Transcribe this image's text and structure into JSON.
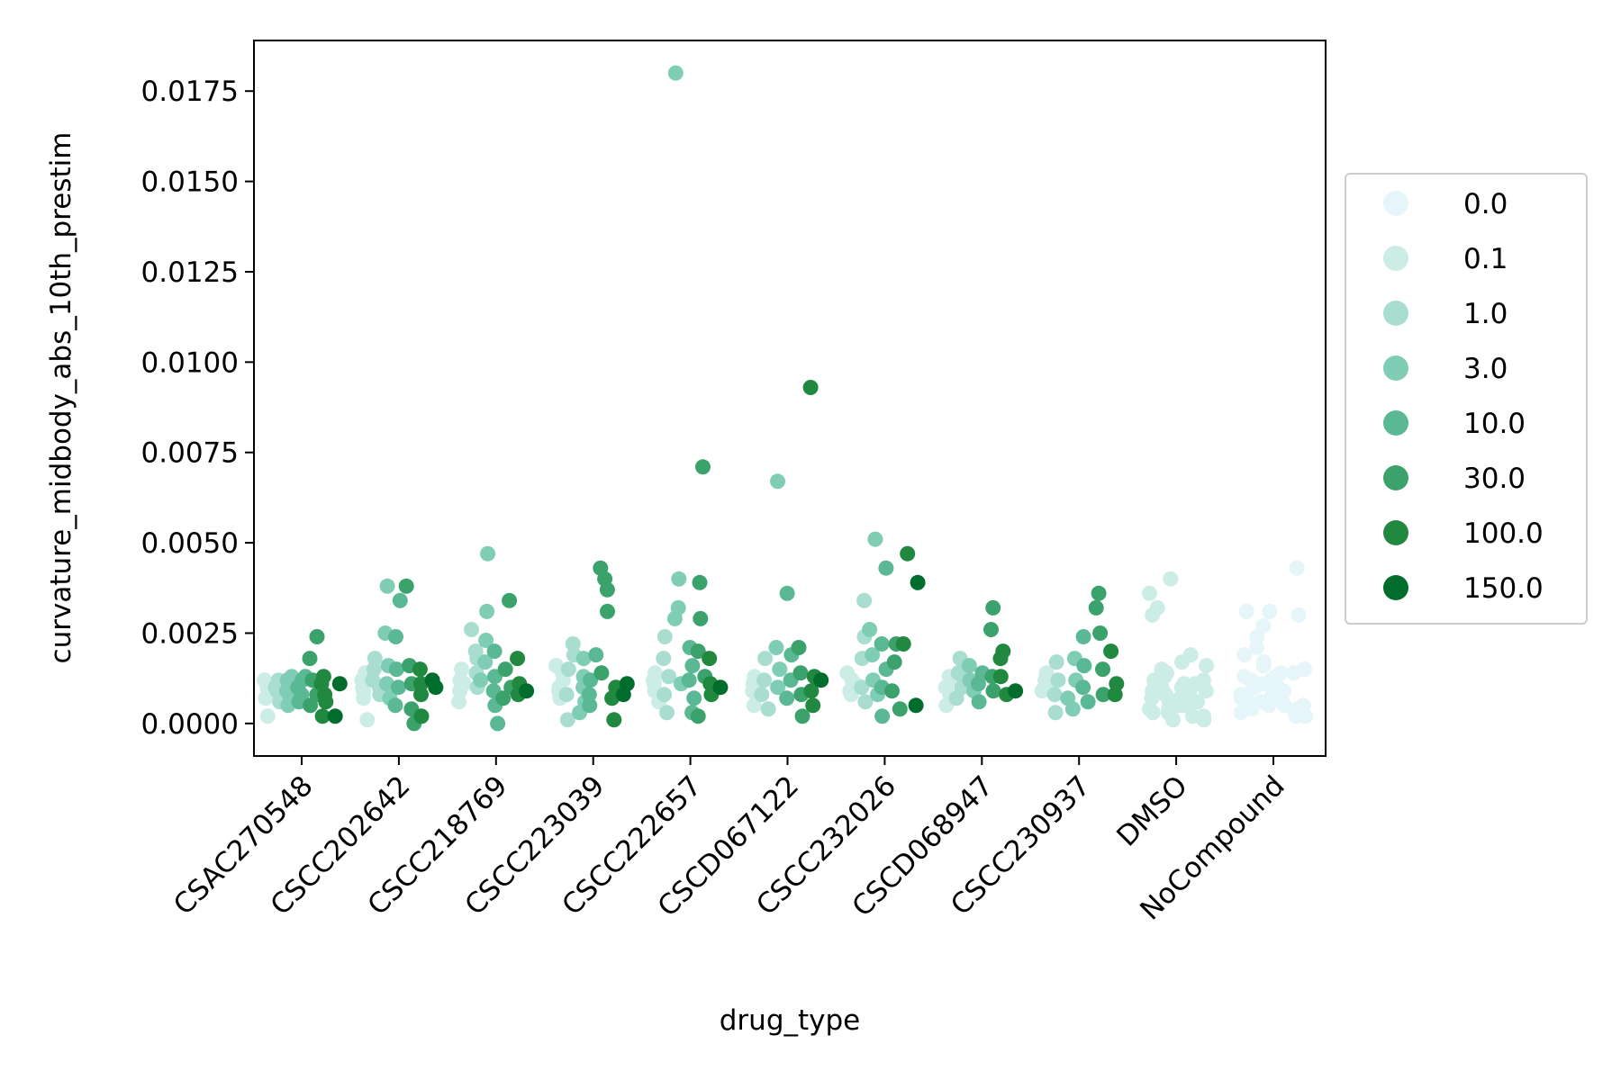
{
  "chart_data": {
    "type": "scatter",
    "subtype": "swarm",
    "xlabel": "drug_type",
    "ylabel": "curvature_midbody_abs_10th_prestim",
    "ylim": [
      -0.0009,
      0.0189
    ],
    "yticks": [
      "0.0000",
      "0.0025",
      "0.0050",
      "0.0075",
      "0.0100",
      "0.0125",
      "0.0150",
      "0.0175"
    ],
    "categories": [
      "CSAC270548",
      "CSCC202642",
      "CSCC218769",
      "CSCC223039",
      "CSCC222657",
      "CSCD067122",
      "CSCC232026",
      "CSCD068947",
      "CSCC230937",
      "DMSO",
      "NoCompound"
    ],
    "legend": {
      "placement": "center-right",
      "entries": [
        {
          "label": "0.0",
          "color": "#e5f5f9"
        },
        {
          "label": "0.1",
          "color": "#ccece6"
        },
        {
          "label": "1.0",
          "color": "#a8ddd0"
        },
        {
          "label": "3.0",
          "color": "#7fcdb5"
        },
        {
          "label": "10.0",
          "color": "#5ab994"
        },
        {
          "label": "30.0",
          "color": "#3aa26a"
        },
        {
          "label": "100.0",
          "color": "#21883f"
        },
        {
          "label": "150.0",
          "color": "#006d2c"
        }
      ]
    },
    "series": [
      {
        "category": "CSAC270548",
        "doses": [
          {
            "dose": "0.1",
            "values": [
              0.0011,
              0.0009,
              0.0012,
              0.0007,
              0.001,
              0.0002
            ]
          },
          {
            "dose": "1.0",
            "values": [
              0.001,
              0.0008,
              0.0006,
              0.0012,
              0.0009,
              0.0011
            ]
          },
          {
            "dose": "3.0",
            "values": [
              0.0013,
              0.0009,
              0.0007,
              0.0005,
              0.001,
              0.0012
            ]
          },
          {
            "dose": "10.0",
            "values": [
              0.0012,
              0.0008,
              0.0006,
              0.001,
              0.0013
            ]
          },
          {
            "dose": "30.0",
            "values": [
              0.0024,
              0.0018,
              0.0012,
              0.0008,
              0.0005
            ]
          },
          {
            "dose": "100.0",
            "values": [
              0.0013,
              0.0008,
              0.0006,
              0.0002,
              0.0011
            ]
          },
          {
            "dose": "150.0",
            "values": [
              0.0011,
              0.0002
            ]
          }
        ]
      },
      {
        "category": "CSCC202642",
        "doses": [
          {
            "dose": "0.1",
            "values": [
              0.001,
              0.0014,
              0.0007,
              0.0012,
              0.0001,
              0.0009
            ]
          },
          {
            "dose": "1.0",
            "values": [
              0.0018,
              0.0012,
              0.0008,
              0.0015,
              0.001
            ]
          },
          {
            "dose": "3.0",
            "values": [
              0.0038,
              0.0025,
              0.0016,
              0.0011,
              0.0007
            ]
          },
          {
            "dose": "10.0",
            "values": [
              0.0034,
              0.0024,
              0.0015,
              0.001,
              0.0005
            ]
          },
          {
            "dose": "30.0",
            "values": [
              0.0038,
              0.0016,
              0.0011,
              0.0004,
              0.0
            ]
          },
          {
            "dose": "100.0",
            "values": [
              0.0015,
              0.0011,
              0.0002,
              0.0008
            ]
          },
          {
            "dose": "150.0",
            "values": [
              0.001,
              0.0012
            ]
          }
        ]
      },
      {
        "category": "CSCC218769",
        "doses": [
          {
            "dose": "0.1",
            "values": [
              0.0015,
              0.0012,
              0.0009,
              0.0011,
              0.0006
            ]
          },
          {
            "dose": "1.0",
            "values": [
              0.0026,
              0.002,
              0.0014,
              0.001,
              0.0018
            ]
          },
          {
            "dose": "3.0",
            "values": [
              0.0047,
              0.0031,
              0.0023,
              0.0017,
              0.0012
            ]
          },
          {
            "dose": "10.0",
            "values": [
              0.002,
              0.0013,
              0.0009,
              0.0005,
              0.0
            ]
          },
          {
            "dose": "30.0",
            "values": [
              0.0034,
              0.0015,
              0.001,
              0.0007
            ]
          },
          {
            "dose": "100.0",
            "values": [
              0.0018,
              0.0011,
              0.0008
            ]
          },
          {
            "dose": "150.0",
            "values": [
              0.0009
            ]
          }
        ]
      },
      {
        "category": "CSCC223039",
        "doses": [
          {
            "dose": "0.1",
            "values": [
              0.0012,
              0.0009,
              0.0014,
              0.0007,
              0.001,
              0.0016
            ]
          },
          {
            "dose": "1.0",
            "values": [
              0.0022,
              0.0019,
              0.0015,
              0.0008,
              0.0001
            ]
          },
          {
            "dose": "3.0",
            "values": [
              0.0018,
              0.0013,
              0.001,
              0.0006,
              0.0003
            ]
          },
          {
            "dose": "10.0",
            "values": [
              0.0019,
              0.0012,
              0.0008,
              0.0005
            ]
          },
          {
            "dose": "30.0",
            "values": [
              0.0043,
              0.004,
              0.0037,
              0.0031,
              0.0014
            ]
          },
          {
            "dose": "100.0",
            "values": [
              0.001,
              0.0007,
              0.0001
            ]
          },
          {
            "dose": "150.0",
            "values": [
              0.0011,
              0.0008
            ]
          }
        ]
      },
      {
        "category": "CSCC222657",
        "doses": [
          {
            "dose": "0.1",
            "values": [
              0.0014,
              0.0011,
              0.0009,
              0.0006,
              0.0012
            ]
          },
          {
            "dose": "1.0",
            "values": [
              0.0024,
              0.0018,
              0.0013,
              0.0008,
              0.0003
            ]
          },
          {
            "dose": "3.0",
            "values": [
              0.018,
              0.004,
              0.0032,
              0.0029,
              0.0011
            ]
          },
          {
            "dose": "10.0",
            "values": [
              0.0021,
              0.0016,
              0.0012,
              0.0007,
              0.0003
            ]
          },
          {
            "dose": "30.0",
            "values": [
              0.0071,
              0.0039,
              0.0029,
              0.002,
              0.0013,
              0.0002
            ]
          },
          {
            "dose": "100.0",
            "values": [
              0.0018,
              0.0011,
              0.0008
            ]
          },
          {
            "dose": "150.0",
            "values": [
              0.001
            ]
          }
        ]
      },
      {
        "category": "CSCD067122",
        "doses": [
          {
            "dose": "0.1",
            "values": [
              0.0013,
              0.0011,
              0.0009,
              0.0005,
              0.0012
            ]
          },
          {
            "dose": "1.0",
            "values": [
              0.0018,
              0.0012,
              0.0008,
              0.0004
            ]
          },
          {
            "dose": "3.0",
            "values": [
              0.0067,
              0.0021,
              0.0015,
              0.001
            ]
          },
          {
            "dose": "10.0",
            "values": [
              0.0036,
              0.0019,
              0.0012,
              0.0007
            ]
          },
          {
            "dose": "30.0",
            "values": [
              0.0021,
              0.0014,
              0.0008,
              0.0002
            ]
          },
          {
            "dose": "100.0",
            "values": [
              0.0093,
              0.0013,
              0.0009,
              0.0005
            ]
          },
          {
            "dose": "150.0",
            "values": [
              0.0012
            ]
          }
        ]
      },
      {
        "category": "CSCC232026",
        "doses": [
          {
            "dose": "0.1",
            "values": [
              0.0014,
              0.0011,
              0.0008,
              0.0012,
              0.0009
            ]
          },
          {
            "dose": "1.0",
            "values": [
              0.0034,
              0.0024,
              0.0018,
              0.001,
              0.0006
            ]
          },
          {
            "dose": "3.0",
            "values": [
              0.0051,
              0.0026,
              0.0019,
              0.0012,
              0.0008
            ]
          },
          {
            "dose": "10.0",
            "values": [
              0.0043,
              0.0022,
              0.0015,
              0.001,
              0.0002
            ]
          },
          {
            "dose": "30.0",
            "values": [
              0.0022,
              0.0017,
              0.0009,
              0.0004
            ]
          },
          {
            "dose": "100.0",
            "values": [
              0.0047,
              0.0022
            ]
          },
          {
            "dose": "150.0",
            "values": [
              0.0039,
              0.0005
            ]
          }
        ]
      },
      {
        "category": "CSCD068947",
        "doses": [
          {
            "dose": "0.1",
            "values": [
              0.0013,
              0.001,
              0.0008,
              0.0005,
              0.0012
            ]
          },
          {
            "dose": "1.0",
            "values": [
              0.0018,
              0.0014,
              0.001,
              0.0007
            ]
          },
          {
            "dose": "3.0",
            "values": [
              0.0016,
              0.0012,
              0.0009
            ]
          },
          {
            "dose": "10.0",
            "values": [
              0.0014,
              0.0011,
              0.0006
            ]
          },
          {
            "dose": "30.0",
            "values": [
              0.0032,
              0.0026,
              0.0013,
              0.0009
            ]
          },
          {
            "dose": "100.0",
            "values": [
              0.002,
              0.0018,
              0.0013,
              0.0008
            ]
          },
          {
            "dose": "150.0",
            "values": [
              0.0009
            ]
          }
        ]
      },
      {
        "category": "CSCC230937",
        "doses": [
          {
            "dose": "0.1",
            "values": [
              0.0014,
              0.0011,
              0.0009,
              0.0012
            ]
          },
          {
            "dose": "1.0",
            "values": [
              0.0017,
              0.0012,
              0.0008,
              0.0003
            ]
          },
          {
            "dose": "3.0",
            "values": [
              0.0018,
              0.0012,
              0.0007,
              0.0004
            ]
          },
          {
            "dose": "10.0",
            "values": [
              0.0024,
              0.0016,
              0.001,
              0.0006
            ]
          },
          {
            "dose": "30.0",
            "values": [
              0.0036,
              0.0032,
              0.0025,
              0.0015,
              0.0008
            ]
          },
          {
            "dose": "100.0",
            "values": [
              0.002,
              0.0011,
              0.0008
            ]
          }
        ]
      },
      {
        "category": "DMSO",
        "doses": [
          {
            "dose": "0.1",
            "values": [
              0.004,
              0.0036,
              0.0032,
              0.003,
              0.0019,
              0.0017,
              0.0016,
              0.0015,
              0.0014,
              0.0013,
              0.0012,
              0.0012,
              0.0011,
              0.0011,
              0.001,
              0.001,
              0.001,
              0.0009,
              0.0009,
              0.0009,
              0.0008,
              0.0008,
              0.0008,
              0.0007,
              0.0007,
              0.0007,
              0.0006,
              0.0006,
              0.0006,
              0.0005,
              0.0005,
              0.0005,
              0.0004,
              0.0004,
              0.0003,
              0.0003,
              0.0002,
              0.0002,
              0.0001,
              0.0001
            ]
          }
        ]
      },
      {
        "category": "NoCompound",
        "doses": [
          {
            "dose": "0.0",
            "values": [
              0.0043,
              0.0031,
              0.0031,
              0.003,
              0.0027,
              0.0024,
              0.0021,
              0.0019,
              0.0017,
              0.0016,
              0.0015,
              0.0014,
              0.0014,
              0.0013,
              0.0013,
              0.0012,
              0.0012,
              0.0011,
              0.0011,
              0.0011,
              0.001,
              0.001,
              0.001,
              0.0009,
              0.0009,
              0.0009,
              0.0008,
              0.0008,
              0.0008,
              0.0007,
              0.0007,
              0.0007,
              0.0006,
              0.0006,
              0.0006,
              0.0005,
              0.0005,
              0.0005,
              0.0004,
              0.0004,
              0.0003,
              0.0003,
              0.0002,
              0.0002
            ]
          }
        ]
      }
    ]
  }
}
